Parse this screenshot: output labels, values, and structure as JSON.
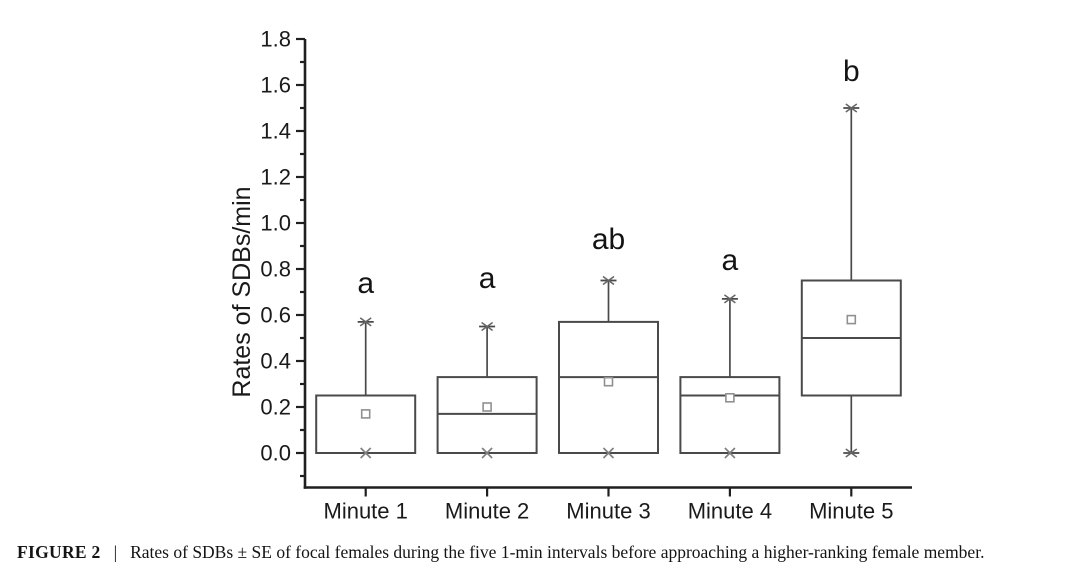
{
  "figure": {
    "caption_label": "FIGURE 2",
    "caption_separator": "|",
    "caption_text": "Rates of SDBs ± SE of focal females during the five 1-min intervals before approaching a higher-ranking female member."
  },
  "chart_data": {
    "type": "box",
    "title": "",
    "xlabel": "",
    "ylabel": "Rates of SDBs/min",
    "categories": [
      "Minute 1",
      "Minute 2",
      "Minute 3",
      "Minute 4",
      "Minute 5"
    ],
    "ylim": [
      -0.15,
      1.8
    ],
    "y_major_ticks": [
      0.0,
      0.2,
      0.4,
      0.6,
      0.8,
      1.0,
      1.2,
      1.4,
      1.6,
      1.8
    ],
    "y_minor_ticks": [
      -0.1,
      0.1,
      0.3,
      0.5,
      0.7,
      0.9,
      1.1,
      1.3,
      1.5,
      1.7
    ],
    "grid": false,
    "legend": null,
    "boxes": [
      {
        "category": "Minute 1",
        "q1": 0.0,
        "median": 0.0,
        "q3": 0.25,
        "whisker_high": 0.57,
        "whisker_low": null,
        "mean": 0.17,
        "min_marker": 0.0,
        "sig_letter": "a",
        "letter_y": 0.74
      },
      {
        "category": "Minute 2",
        "q1": 0.0,
        "median": 0.17,
        "q3": 0.33,
        "whisker_high": 0.55,
        "whisker_low": null,
        "mean": 0.2,
        "min_marker": 0.0,
        "sig_letter": "a",
        "letter_y": 0.76
      },
      {
        "category": "Minute 3",
        "q1": 0.0,
        "median": 0.33,
        "q3": 0.57,
        "whisker_high": 0.75,
        "whisker_low": null,
        "mean": 0.31,
        "min_marker": 0.0,
        "sig_letter": "ab",
        "letter_y": 0.93
      },
      {
        "category": "Minute 4",
        "q1": 0.0,
        "median": 0.25,
        "q3": 0.33,
        "whisker_high": 0.67,
        "whisker_low": null,
        "mean": 0.24,
        "min_marker": 0.0,
        "sig_letter": "a",
        "letter_y": 0.84
      },
      {
        "category": "Minute 5",
        "q1": 0.25,
        "median": 0.5,
        "q3": 0.75,
        "whisker_high": 1.5,
        "whisker_low": 0.0,
        "mean": 0.58,
        "min_marker": null,
        "sig_letter": "b",
        "letter_y": 1.66
      }
    ],
    "colors": {
      "axis": "#1f1f1f",
      "tick_text": "#1a1a1a",
      "box_stroke": "#4a4a4a",
      "whisker": "#4a4a4a",
      "mean_marker": "#909090",
      "min_marker": "#7f7f7f",
      "letter_text": "#141414",
      "background": "#ffffff"
    }
  }
}
